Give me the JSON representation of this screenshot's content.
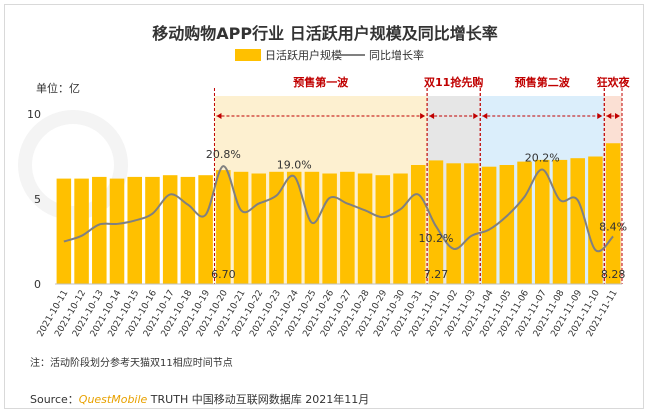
{
  "title": "移动购物APP行业 日活跃用户规模及同比增长率",
  "legend": {
    "bar": "日活跃用户规模",
    "line": "同比增长率"
  },
  "unit_label": "单位：亿",
  "note": "注：活动阶段划分参考天猫双11相应时间节点",
  "source": {
    "prefix": "Source：",
    "brand": "QuestMobile",
    "rest": " TRUTH 中国移动互联网数据库 2021年11月"
  },
  "colors": {
    "bar": "#ffc000",
    "line": "#808080",
    "phase_label": "#c00000",
    "phase1_bg": "#fdf0d0",
    "phase2_bg": "#e6e6e6",
    "phase3_bg": "#dbeefb",
    "phase4_bg": "#fbe0d4"
  },
  "chart_data": {
    "type": "bar+line",
    "categories": [
      "2021-10-11",
      "2021-10-12",
      "2021-10-13",
      "2021-10-14",
      "2021-10-15",
      "2021-10-16",
      "2021-10-17",
      "2021-10-18",
      "2021-10-19",
      "2021-10-20",
      "2021-10-21",
      "2021-10-22",
      "2021-10-23",
      "2021-10-24",
      "2021-10-25",
      "2021-10-26",
      "2021-10-27",
      "2021-10-28",
      "2021-10-29",
      "2021-10-30",
      "2021-10-31",
      "2021-11-01",
      "2021-11-02",
      "2021-11-03",
      "2021-11-04",
      "2021-11-05",
      "2021-11-06",
      "2021-11-07",
      "2021-11-08",
      "2021-11-09",
      "2021-11-10",
      "2021-11-11"
    ],
    "series": [
      {
        "name": "日活跃用户规模",
        "type": "bar",
        "axis": "left",
        "values": [
          6.2,
          6.2,
          6.3,
          6.2,
          6.3,
          6.3,
          6.4,
          6.3,
          6.4,
          6.7,
          6.6,
          6.5,
          6.6,
          6.6,
          6.6,
          6.5,
          6.6,
          6.5,
          6.4,
          6.5,
          7.0,
          7.27,
          7.1,
          7.1,
          6.9,
          7.0,
          7.2,
          7.3,
          7.3,
          7.4,
          7.5,
          8.28
        ],
        "labels": {
          "9": "6.70",
          "21": "7.27",
          "31": "8.28"
        }
      },
      {
        "name": "同比增长率",
        "type": "line",
        "axis": "hidden",
        "values": [
          7.5,
          8.5,
          10.5,
          10.6,
          11.2,
          12.4,
          15.8,
          14.0,
          12.2,
          20.8,
          13.0,
          14.2,
          15.6,
          19.0,
          10.8,
          15.2,
          14.2,
          13.0,
          11.8,
          13.2,
          15.8,
          10.2,
          6.2,
          8.5,
          9.6,
          12.0,
          15.4,
          20.2,
          14.8,
          14.8,
          6.0,
          8.4
        ],
        "labels": {
          "9": "20.8%",
          "13": "19.0%",
          "21": "10.2%",
          "27": "20.2%",
          "31": "8.4%"
        }
      }
    ],
    "ylim": [
      0,
      10
    ],
    "yticks": [
      0,
      5,
      10
    ],
    "phases": [
      {
        "label": "预售第一波",
        "start": 9,
        "end": 20
      },
      {
        "label": "双11抢先购",
        "start": 21,
        "end": 23
      },
      {
        "label": "预售第二波",
        "start": 24,
        "end": 30
      },
      {
        "label": "狂欢夜",
        "start": 31,
        "end": 31
      }
    ],
    "grid": false
  }
}
